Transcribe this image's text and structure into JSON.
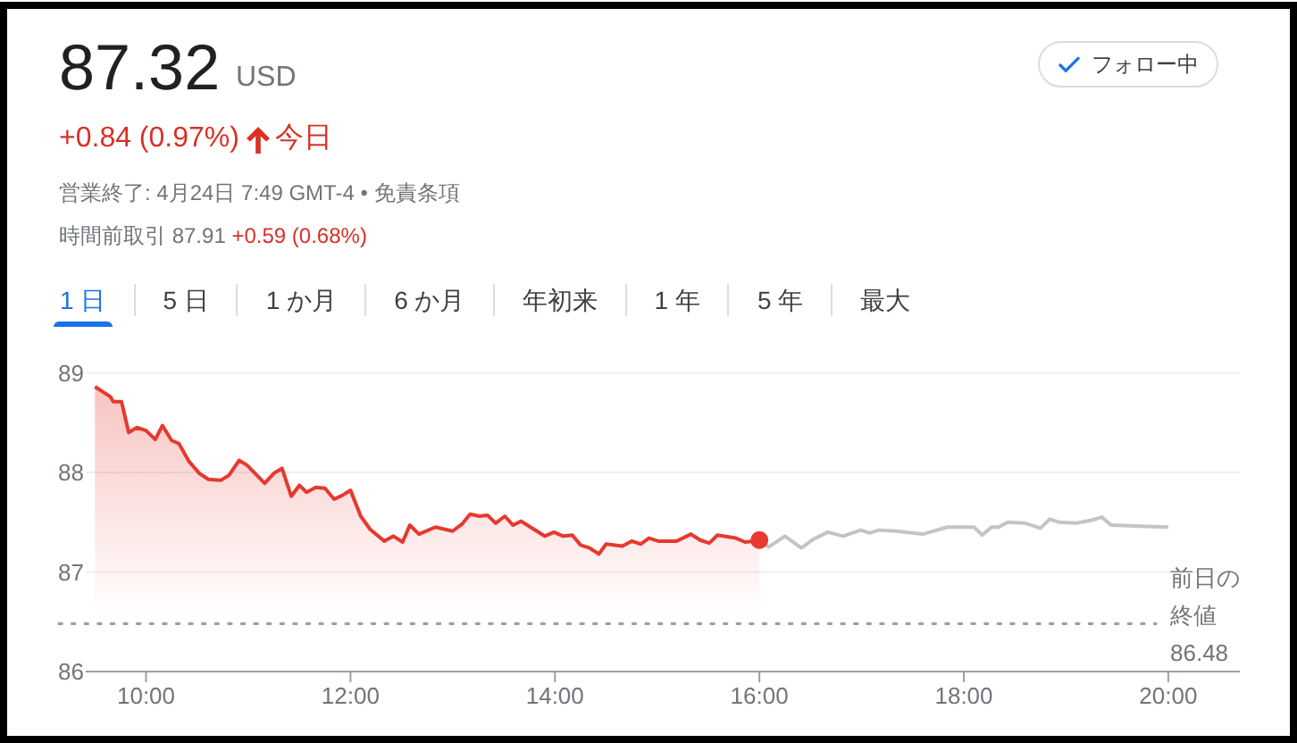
{
  "chart_data": {
    "type": "line",
    "title": "87.32",
    "annotations": [
      "USD",
      "+0.84 (0.97%)",
      "今日",
      "営業終了: 4月24日 7:49 GMT-4 • 免責条項",
      "時間前取引 87.91",
      "+0.59 (0.68%)",
      "フォロー中",
      "1 日",
      "5 日",
      "1 か月",
      "6 か月",
      "年初来",
      "1 年",
      "5 年",
      "最大",
      "86.48"
    ],
    "series": [
      {
        "type": "area",
        "color": "#e6392f",
        "x": [
          9.5,
          9.65,
          9.68,
          9.76,
          9.83,
          9.91,
          10.0,
          10.09,
          10.16,
          10.25,
          10.32,
          10.42,
          10.52,
          10.61,
          10.73,
          10.81,
          10.91,
          10.99,
          11.16,
          11.25,
          11.33,
          11.42,
          11.5,
          11.57,
          11.66,
          11.75,
          11.84,
          11.92,
          12.0,
          12.1,
          12.19,
          12.33,
          12.42,
          12.51,
          12.58,
          12.67,
          12.83,
          13.0,
          13.09,
          13.17,
          13.26,
          13.34,
          13.42,
          13.51,
          13.59,
          13.67,
          13.76,
          13.9,
          13.99,
          14.08,
          14.17,
          14.25,
          14.34,
          14.43,
          14.5,
          14.66,
          14.75,
          14.84,
          14.92,
          15.01,
          15.19,
          15.33,
          15.42,
          15.51,
          15.59,
          15.77,
          15.86,
          15.94,
          16.0
        ],
        "values": [
          88.86,
          88.76,
          88.71,
          88.71,
          88.4,
          88.45,
          88.42,
          88.33,
          88.47,
          88.32,
          88.29,
          88.11,
          87.99,
          87.93,
          87.92,
          87.97,
          88.12,
          88.07,
          87.89,
          87.99,
          88.04,
          87.76,
          87.87,
          87.8,
          87.85,
          87.84,
          87.73,
          87.77,
          87.82,
          87.56,
          87.43,
          87.31,
          87.36,
          87.3,
          87.47,
          87.38,
          87.45,
          87.41,
          87.48,
          87.58,
          87.56,
          87.57,
          87.49,
          87.56,
          87.47,
          87.51,
          87.45,
          87.36,
          87.4,
          87.36,
          87.37,
          87.27,
          87.24,
          87.18,
          87.28,
          87.26,
          87.31,
          87.28,
          87.34,
          87.31,
          87.31,
          87.38,
          87.32,
          87.29,
          87.37,
          87.34,
          87.3,
          87.31,
          87.32
        ]
      },
      {
        "color": "#c4c4c4",
        "x": [
          16.0,
          16.09,
          16.25,
          16.41,
          16.53,
          16.67,
          16.82,
          16.99,
          17.08,
          17.17,
          17.34,
          17.6,
          17.84,
          18.1,
          18.18,
          18.27,
          18.34,
          18.43,
          18.6,
          18.75,
          18.84,
          18.93,
          19.1,
          19.25,
          19.35,
          19.44,
          19.72,
          20.0
        ],
        "values": [
          87.32,
          87.25,
          87.36,
          87.24,
          87.33,
          87.4,
          87.36,
          87.42,
          87.39,
          87.42,
          87.41,
          87.38,
          87.45,
          87.45,
          87.37,
          87.45,
          87.45,
          87.5,
          87.49,
          87.44,
          87.53,
          87.5,
          87.49,
          87.52,
          87.55,
          87.47,
          87.46,
          87.45
        ]
      },
      {
        "type": "scatter",
        "color": "#e6392f",
        "x": [
          16.0
        ],
        "values": [
          87.32
        ]
      }
    ],
    "xlim": [
      9.41,
      20.7
    ],
    "xticks": [
      {
        "value": 10,
        "label": "10:00"
      },
      {
        "value": 12,
        "label": "12:00"
      },
      {
        "value": 14,
        "label": "14:00"
      },
      {
        "value": 16,
        "label": "16:00"
      },
      {
        "value": 18,
        "label": "18:00"
      },
      {
        "value": 20,
        "label": "20:00"
      }
    ],
    "ylim": [
      86,
      89
    ],
    "yticks": [
      86,
      87,
      88,
      89
    ],
    "grid": "y",
    "ref_lines": [
      {
        "axis": "y",
        "value": 86.48,
        "label": "前日の終値",
        "color": "#9aa0a6",
        "line_style": "dotted"
      }
    ]
  }
}
